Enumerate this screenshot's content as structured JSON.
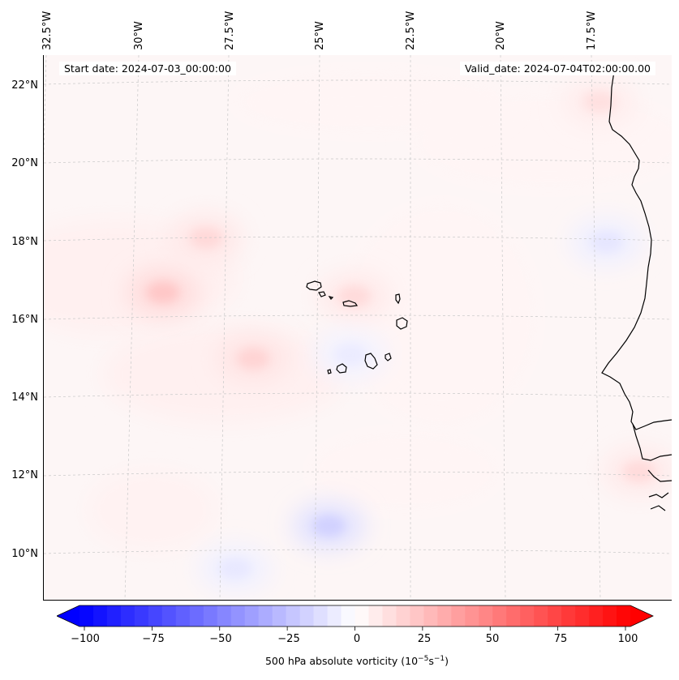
{
  "header": {
    "start_date": "Start date: 2024-07-03_00:00:00",
    "valid_date": "Valid_date: 2024-07-04T02:00:00.00"
  },
  "axes": {
    "lat_labels": [
      "22°N",
      "20°N",
      "18°N",
      "16°N",
      "14°N",
      "12°N",
      "10°N"
    ],
    "lon_labels": [
      "32.5°W",
      "30°W",
      "27.5°W",
      "25°W",
      "22.5°W",
      "20°W",
      "17.5°W"
    ]
  },
  "colorbar": {
    "ticks": [
      "−100",
      "−75",
      "−50",
      "−25",
      "0",
      "25",
      "50",
      "75",
      "100"
    ],
    "label_prefix": "500 hPa absolute vorticity (10",
    "label_exp1": "−5",
    "label_mid": "s",
    "label_exp2": "−1",
    "label_suffix": ")",
    "min": -100,
    "max": 100,
    "colors": {
      "low": "#0000ff",
      "mid": "#ffffff",
      "high": "#ff0000"
    }
  },
  "field": {
    "variable": "500 hPa absolute vorticity",
    "features": [
      {
        "type": "positive-max",
        "lon": -29.7,
        "lat": 16.6,
        "value": 22
      },
      {
        "type": "positive-max",
        "lon": -28.5,
        "lat": 18.0,
        "value": 15
      },
      {
        "type": "positive-max",
        "lon": -27.2,
        "lat": 14.9,
        "value": 17
      },
      {
        "type": "positive-max",
        "lon": -24.4,
        "lat": 16.5,
        "value": 14
      },
      {
        "type": "positive-max",
        "lon": -17.6,
        "lat": 21.5,
        "value": 12
      },
      {
        "type": "positive-max",
        "lon": -16.5,
        "lat": 12.0,
        "value": 14
      },
      {
        "type": "negative-min",
        "lon": -25.1,
        "lat": 10.6,
        "value": -18
      },
      {
        "type": "negative-min",
        "lon": -17.4,
        "lat": 17.9,
        "value": -10
      },
      {
        "type": "negative-min",
        "lon": -24.5,
        "lat": 15.0,
        "value": -8
      },
      {
        "type": "negative-min",
        "lon": -27.7,
        "lat": 9.5,
        "value": -9
      }
    ]
  }
}
